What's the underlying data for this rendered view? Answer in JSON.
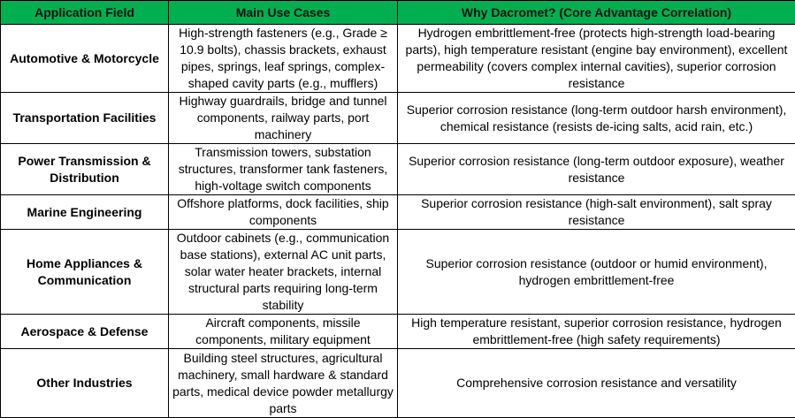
{
  "table": {
    "header": [
      "Application Field",
      "Main Use Cases",
      "Why Dacromet? (Core Advantage Correlation)"
    ],
    "rows": [
      [
        "Automotive & Motorcycle",
        "High-strength fasteners (e.g., Grade ≥ 10.9 bolts), chassis brackets, exhaust pipes, springs, leaf springs, complex-shaped cavity parts (e.g., mufflers)",
        "Hydrogen embrittlement-free (protects high-strength load-bearing parts), high temperature resistant (engine bay environment), excellent permeability (covers complex internal cavities), superior corrosion resistance"
      ],
      [
        "Transportation Facilities",
        "Highway guardrails, bridge and tunnel components, railway parts, port machinery",
        "Superior corrosion resistance (long-term outdoor harsh environment), chemical resistance (resists de-icing salts, acid rain, etc.)"
      ],
      [
        "Power Transmission & Distribution",
        "Transmission towers, substation structures, transformer tank fasteners, high-voltage switch components",
        "Superior corrosion resistance (long-term outdoor exposure), weather resistance"
      ],
      [
        "Marine Engineering",
        "Offshore platforms, dock facilities, ship components",
        "Superior corrosion resistance (high-salt environment), salt spray resistance"
      ],
      [
        "Home Appliances & Communication",
        "Outdoor cabinets (e.g., communication base stations), external AC unit parts, solar water heater brackets, internal structural parts requiring long-term stability",
        "Superior corrosion resistance (outdoor or humid environment), hydrogen embrittlement-free"
      ],
      [
        "Aerospace & Defense",
        "Aircraft components, missile components, military equipment",
        "High temperature resistant, superior corrosion resistance, hydrogen embrittlement-free (high safety requirements)"
      ],
      [
        "Other Industries",
        "Building steel structures, agricultural machinery, small hardware & standard parts, medical device powder metallurgy parts",
        "Comprehensive corrosion resistance and versatility"
      ]
    ]
  }
}
